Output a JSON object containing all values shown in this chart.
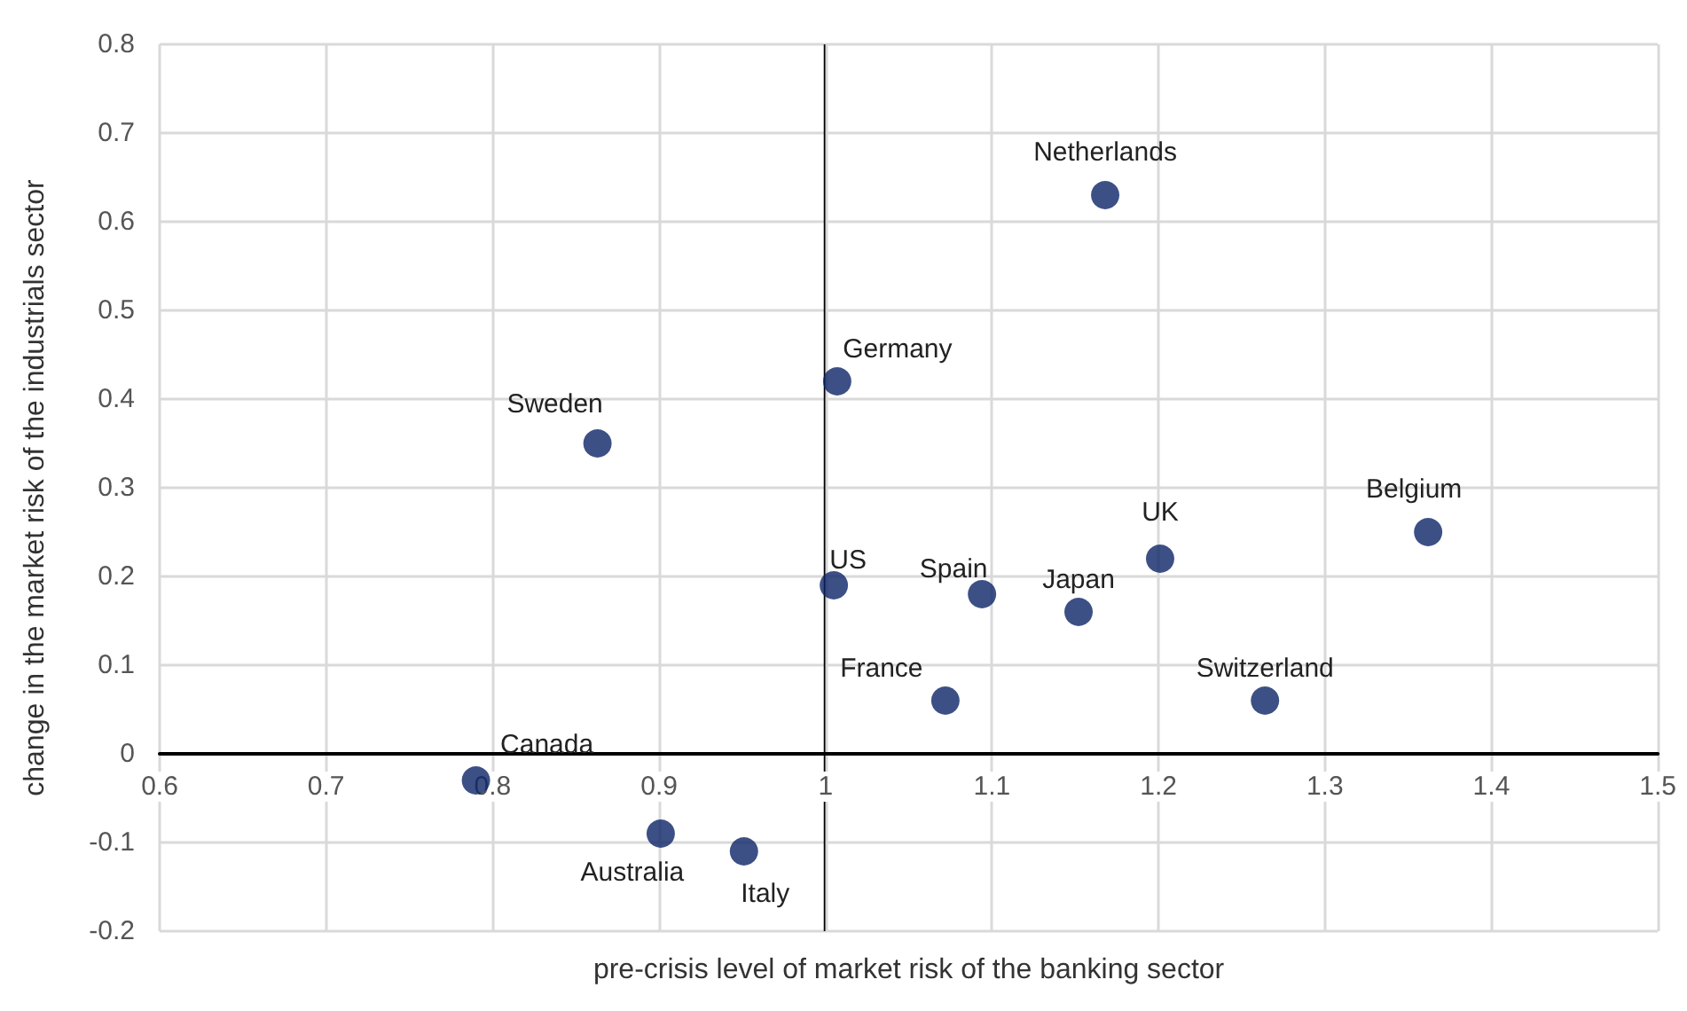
{
  "chart_data": {
    "type": "scatter",
    "xlabel": "pre-crisis level of market risk of the banking sector",
    "ylabel": "change in the market risk of the industrials sector",
    "x": [
      1.168,
      1.007,
      0.863,
      1.362,
      1.201,
      1.005,
      1.094,
      1.152,
      1.072,
      1.264,
      0.79,
      0.901,
      0.951
    ],
    "series": [
      {
        "color": "#0b2466",
        "values": [
          0.63,
          0.42,
          0.35,
          0.25,
          0.22,
          0.19,
          0.18,
          0.16,
          0.06,
          0.06,
          -0.03,
          -0.09,
          -0.11
        ]
      }
    ],
    "annotations": [
      {
        "text": "Netherlands",
        "x": 1.168,
        "y": 0.63
      },
      {
        "text": "Germany",
        "x": 1.007,
        "y": 0.42
      },
      {
        "text": "Sweden",
        "x": 0.863,
        "y": 0.35
      },
      {
        "text": "Belgium",
        "x": 1.362,
        "y": 0.25
      },
      {
        "text": "UK",
        "x": 1.201,
        "y": 0.22
      },
      {
        "text": "US",
        "x": 1.005,
        "y": 0.19
      },
      {
        "text": "Spain",
        "x": 1.094,
        "y": 0.18
      },
      {
        "text": "Japan",
        "x": 1.152,
        "y": 0.16
      },
      {
        "text": "France",
        "x": 1.072,
        "y": 0.06
      },
      {
        "text": "Switzerland",
        "x": 1.264,
        "y": 0.06
      },
      {
        "text": "Canada",
        "x": 0.79,
        "y": -0.03
      },
      {
        "text": "Australia",
        "x": 0.901,
        "y": -0.09
      },
      {
        "text": "Italy",
        "x": 0.951,
        "y": -0.11
      }
    ],
    "xlim": [
      0.6,
      1.5
    ],
    "xticks": [
      0.6,
      0.7,
      0.8,
      0.9,
      1,
      1.1,
      1.2,
      1.3,
      1.4,
      1.5
    ],
    "ylim": [
      -0.2,
      0.8
    ],
    "yticks": [
      -0.2,
      -0.1,
      0,
      0.1,
      0.2,
      0.3,
      0.4,
      0.5,
      0.6,
      0.7,
      0.8
    ],
    "ref_lines": [
      {
        "axis": "x",
        "value": 1
      }
    ],
    "grid": true,
    "marker": "circle"
  }
}
